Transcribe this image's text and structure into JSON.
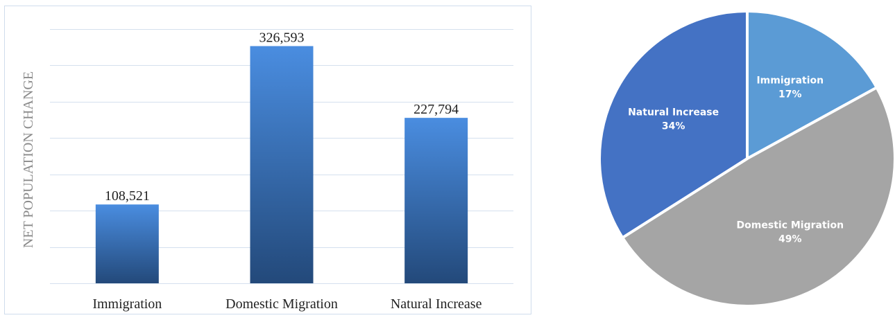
{
  "chart_data": [
    {
      "type": "bar",
      "title": "",
      "xlabel": "",
      "ylabel": "NET POPULATION CHANGE",
      "categories": [
        "Immigration",
        "Domestic Migration",
        "Natural Increase"
      ],
      "values": [
        108521,
        326593,
        227794
      ],
      "value_labels": [
        "108,521",
        "326,593",
        "227,794"
      ],
      "ylim": [
        0,
        350000
      ],
      "y_gridlines": [
        0,
        50000,
        100000,
        150000,
        200000,
        250000,
        300000,
        350000
      ],
      "y_tick_labels_shown": false,
      "grid": true,
      "colors": {
        "bar_top": "#4a8de0",
        "bar_bottom": "#23497a",
        "grid": "#d4e0ee",
        "text": "#222222",
        "axis_label": "#8a8a8a"
      }
    },
    {
      "type": "pie",
      "slices": [
        {
          "label": "Immigration",
          "value": 17,
          "value_label": "17%",
          "color": "#5b9bd5"
        },
        {
          "label": "Domestic Migration",
          "value": 49,
          "value_label": "49%",
          "color": "#a5a5a5"
        },
        {
          "label": "Natural Increase",
          "value": 34,
          "value_label": "34%",
          "color": "#4472c4"
        }
      ],
      "label_color": "#ffffff",
      "start": "12 o'clock",
      "direction": "clockwise"
    }
  ]
}
